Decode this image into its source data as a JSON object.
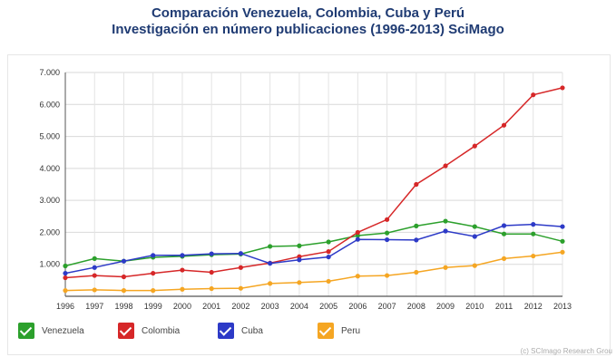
{
  "chart_data": {
    "type": "line",
    "title": "Comparación Venezuela, Colombia, Cuba y Perú",
    "subtitle": "Investigación en número publicaciones (1996-2013) SciMago",
    "xlabel": "",
    "ylabel": "",
    "x": [
      "1996",
      "1997",
      "1998",
      "1999",
      "2000",
      "2001",
      "2002",
      "2003",
      "2004",
      "2005",
      "2006",
      "2007",
      "2008",
      "2009",
      "2010",
      "2011",
      "2012",
      "2013"
    ],
    "ylim": [
      0,
      7000
    ],
    "yticks": [
      "1.000",
      "2.000",
      "3.000",
      "4.000",
      "5.000",
      "6.000",
      "7.000"
    ],
    "grid": true,
    "legend_position": "bottom-left",
    "series": [
      {
        "name": "Venezuela",
        "color": "#2ca02c",
        "values": [
          950,
          1180,
          1100,
          1220,
          1250,
          1300,
          1320,
          1560,
          1580,
          1700,
          1900,
          1980,
          2200,
          2350,
          2180,
          1950,
          1950,
          1720
        ]
      },
      {
        "name": "Colombia",
        "color": "#d62728",
        "values": [
          580,
          650,
          610,
          720,
          820,
          750,
          900,
          1040,
          1240,
          1400,
          2000,
          2400,
          3500,
          4080,
          4700,
          5350,
          6300,
          6520
        ]
      },
      {
        "name": "Cuba",
        "color": "#2d3ac7",
        "values": [
          720,
          900,
          1100,
          1280,
          1280,
          1330,
          1340,
          1030,
          1140,
          1230,
          1780,
          1770,
          1760,
          2040,
          1870,
          2210,
          2250,
          2180
        ]
      },
      {
        "name": "Peru",
        "color": "#f5a623",
        "values": [
          180,
          200,
          180,
          180,
          220,
          240,
          250,
          400,
          430,
          470,
          630,
          650,
          750,
          900,
          960,
          1180,
          1260,
          1380
        ]
      }
    ]
  },
  "credit": "(c) SCImago Research Grou"
}
